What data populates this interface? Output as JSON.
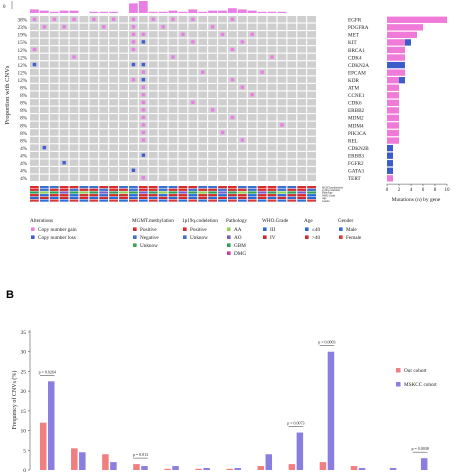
{
  "colors": {
    "gain": "#e97fe4",
    "loss": "#3f5fd1",
    "grid_bg": "#cfcfcf",
    "bar_gene": "#f07ad8",
    "bar_gene_loss": "#3c5cc9",
    "our_cohort": "#f27f7f",
    "mskcc": "#8a7fe0",
    "pos": "#d62c2c",
    "neg": "#3b6fd0",
    "unk": "#33a853",
    "aa": "#8fd05a",
    "ao": "#7b5cc9",
    "gbm": "#2ea05a",
    "dmg": "#c93ea8",
    "iii": "#2a6cd6",
    "iv": "#d22a2a",
    "male": "#2f6fd8",
    "female": "#d63a3a"
  },
  "panel_a": {
    "label": "A",
    "ylabel": "Proportion with CNVs",
    "top_axis_tick": "0",
    "sample_count": 29,
    "genes": [
      {
        "name": "EGFR",
        "pct": "38%",
        "gain": 10,
        "loss": 0
      },
      {
        "name": "PDGFRA",
        "pct": "23%",
        "gain": 6,
        "loss": 0
      },
      {
        "name": "MET",
        "pct": "19%",
        "gain": 5,
        "loss": 0
      },
      {
        "name": "KIT",
        "pct": "15%",
        "gain": 3,
        "loss": 1
      },
      {
        "name": "BRCA1",
        "pct": "12%",
        "gain": 3,
        "loss": 0
      },
      {
        "name": "CDK4",
        "pct": "12%",
        "gain": 3,
        "loss": 0
      },
      {
        "name": "CDKN2A",
        "pct": "12%",
        "gain": 0,
        "loss": 3
      },
      {
        "name": "EPCAM",
        "pct": "12%",
        "gain": 3,
        "loss": 0
      },
      {
        "name": "KDR",
        "pct": "12%",
        "gain": 2,
        "loss": 1
      },
      {
        "name": "ATM",
        "pct": "8%",
        "gain": 2,
        "loss": 0
      },
      {
        "name": "CCNE1",
        "pct": "8%",
        "gain": 2,
        "loss": 0
      },
      {
        "name": "CDK6",
        "pct": "8%",
        "gain": 2,
        "loss": 0
      },
      {
        "name": "ERBB2",
        "pct": "8%",
        "gain": 2,
        "loss": 0
      },
      {
        "name": "MDM2",
        "pct": "8%",
        "gain": 2,
        "loss": 0
      },
      {
        "name": "MDM4",
        "pct": "8%",
        "gain": 2,
        "loss": 0
      },
      {
        "name": "PIK3CA",
        "pct": "8%",
        "gain": 2,
        "loss": 0
      },
      {
        "name": "REL",
        "pct": "8%",
        "gain": 2,
        "loss": 0
      },
      {
        "name": "CDKN2B",
        "pct": "4%",
        "gain": 0,
        "loss": 1
      },
      {
        "name": "ERBB3",
        "pct": "4%",
        "gain": 0,
        "loss": 1
      },
      {
        "name": "FGFR2",
        "pct": "4%",
        "gain": 0,
        "loss": 1
      },
      {
        "name": "GATA3",
        "pct": "4%",
        "gain": 0,
        "loss": 1
      },
      {
        "name": "TERT",
        "pct": "4%",
        "gain": 1,
        "loss": 0
      }
    ],
    "cells": [
      [
        0,
        "gain"
      ],
      [
        2,
        "gain"
      ],
      [
        4,
        "gain"
      ],
      [
        6,
        "gain"
      ],
      [
        8,
        "gain"
      ],
      [
        10,
        "gain"
      ],
      [
        12,
        "gain"
      ],
      [
        14,
        "gain"
      ],
      [
        16,
        "gain"
      ],
      [
        20,
        "gain"
      ],
      [
        1,
        "gain"
      ],
      [
        3,
        "gain"
      ],
      [
        7,
        "gain"
      ],
      [
        10,
        "gain"
      ],
      [
        13,
        "gain"
      ],
      [
        18,
        "gain"
      ],
      [
        10,
        "gain"
      ],
      [
        11,
        "gain"
      ],
      [
        15,
        "gain"
      ],
      [
        19,
        "gain"
      ],
      [
        22,
        "gain"
      ],
      [
        10,
        "gain"
      ],
      [
        11,
        "loss"
      ],
      [
        16,
        "gain"
      ],
      [
        21,
        "gain"
      ],
      [
        0,
        "gain"
      ],
      [
        10,
        "gain"
      ],
      [
        20,
        "gain"
      ],
      [
        4,
        "gain"
      ],
      [
        14,
        "gain"
      ],
      [
        24,
        "gain"
      ],
      [
        0,
        "loss"
      ],
      [
        10,
        "loss"
      ],
      [
        11,
        "loss"
      ],
      [
        11,
        "gain"
      ],
      [
        17,
        "gain"
      ],
      [
        23,
        "gain"
      ],
      [
        10,
        "gain"
      ],
      [
        11,
        "loss"
      ],
      [
        20,
        "gain"
      ],
      [
        11,
        "gain"
      ],
      [
        21,
        "gain"
      ],
      [
        11,
        "gain"
      ],
      [
        22,
        "gain"
      ],
      [
        11,
        "gain"
      ],
      [
        16,
        "gain"
      ],
      [
        11,
        "gain"
      ],
      [
        18,
        "gain"
      ],
      [
        11,
        "gain"
      ],
      [
        20,
        "gain"
      ],
      [
        11,
        "gain"
      ],
      [
        25,
        "gain"
      ],
      [
        11,
        "gain"
      ],
      [
        19,
        "gain"
      ],
      [
        11,
        "gain"
      ],
      [
        21,
        "gain"
      ],
      [
        1,
        "loss"
      ],
      [
        11,
        "loss"
      ],
      [
        3,
        "loss"
      ],
      [
        10,
        "loss"
      ],
      [
        11,
        "gain"
      ]
    ],
    "cell_rows": [
      0,
      0,
      0,
      0,
      0,
      0,
      0,
      0,
      0,
      0,
      1,
      1,
      1,
      1,
      1,
      1,
      2,
      2,
      2,
      2,
      2,
      3,
      3,
      3,
      3,
      4,
      4,
      4,
      5,
      5,
      5,
      6,
      6,
      6,
      7,
      7,
      7,
      8,
      8,
      8,
      9,
      9,
      10,
      10,
      11,
      11,
      12,
      12,
      13,
      13,
      14,
      14,
      15,
      15,
      16,
      16,
      17,
      18,
      19,
      20,
      21
    ],
    "track_labels": [
      "MGMT.methylation",
      "1p19q.codeletion",
      "Pathology",
      "WHO.Grade",
      "Age",
      "Gender"
    ],
    "side_xlabel": "Mutations (n) by gene",
    "side_ticks": [
      "0",
      "2",
      "4",
      "6",
      "8",
      "10"
    ],
    "legend": {
      "alterations": {
        "title": "Alterations",
        "items": [
          "Copy number gain",
          "Copy number loss"
        ]
      },
      "mgmt": {
        "title": "MGMT.methylation",
        "items": [
          "Positive",
          "Negative",
          "Unknow"
        ]
      },
      "codel": {
        "title": "1p19q.codeletion",
        "items": [
          "Positive",
          "Unknow"
        ]
      },
      "pathology": {
        "title": "Pathology",
        "items": [
          "AA",
          "AO",
          "GBM",
          "DMG"
        ]
      },
      "grade": {
        "title": "WHO.Grade",
        "items": [
          "III",
          "IV"
        ]
      },
      "age": {
        "title": "Age",
        "items": [
          "≤40",
          ">40"
        ]
      },
      "gender": {
        "title": "Gender",
        "items": [
          "Male",
          "Female"
        ]
      }
    }
  },
  "chart_data": {
    "type": "bar",
    "panel_label": "B",
    "ylabel": "Frequency of CNVs (%)",
    "yticks": [
      0,
      5,
      10,
      15,
      20,
      25,
      30,
      35
    ],
    "ylim": [
      0,
      35
    ],
    "legend_placement": "right",
    "series": [
      {
        "name": "Our cohort",
        "values": [
          12,
          5.5,
          4,
          1.5,
          0.3,
          0.3,
          0.3,
          1,
          1.5,
          2,
          1,
          0,
          0
        ]
      },
      {
        "name": "MSKCC cohort",
        "values": [
          22.5,
          4.5,
          2,
          1,
          1,
          0.5,
          0.5,
          4,
          9.5,
          30,
          0.5,
          0.5,
          3
        ]
      }
    ],
    "annotations": [
      {
        "text": "p = 0.0264",
        "group": 0
      },
      {
        "text": "p = 0.013",
        "group": 3
      },
      {
        "text": "p = 0.0073",
        "group": 8
      },
      {
        "text": "p = 0.0003",
        "group": 9
      },
      {
        "text": "p = 0.0038",
        "group": 12
      }
    ]
  }
}
